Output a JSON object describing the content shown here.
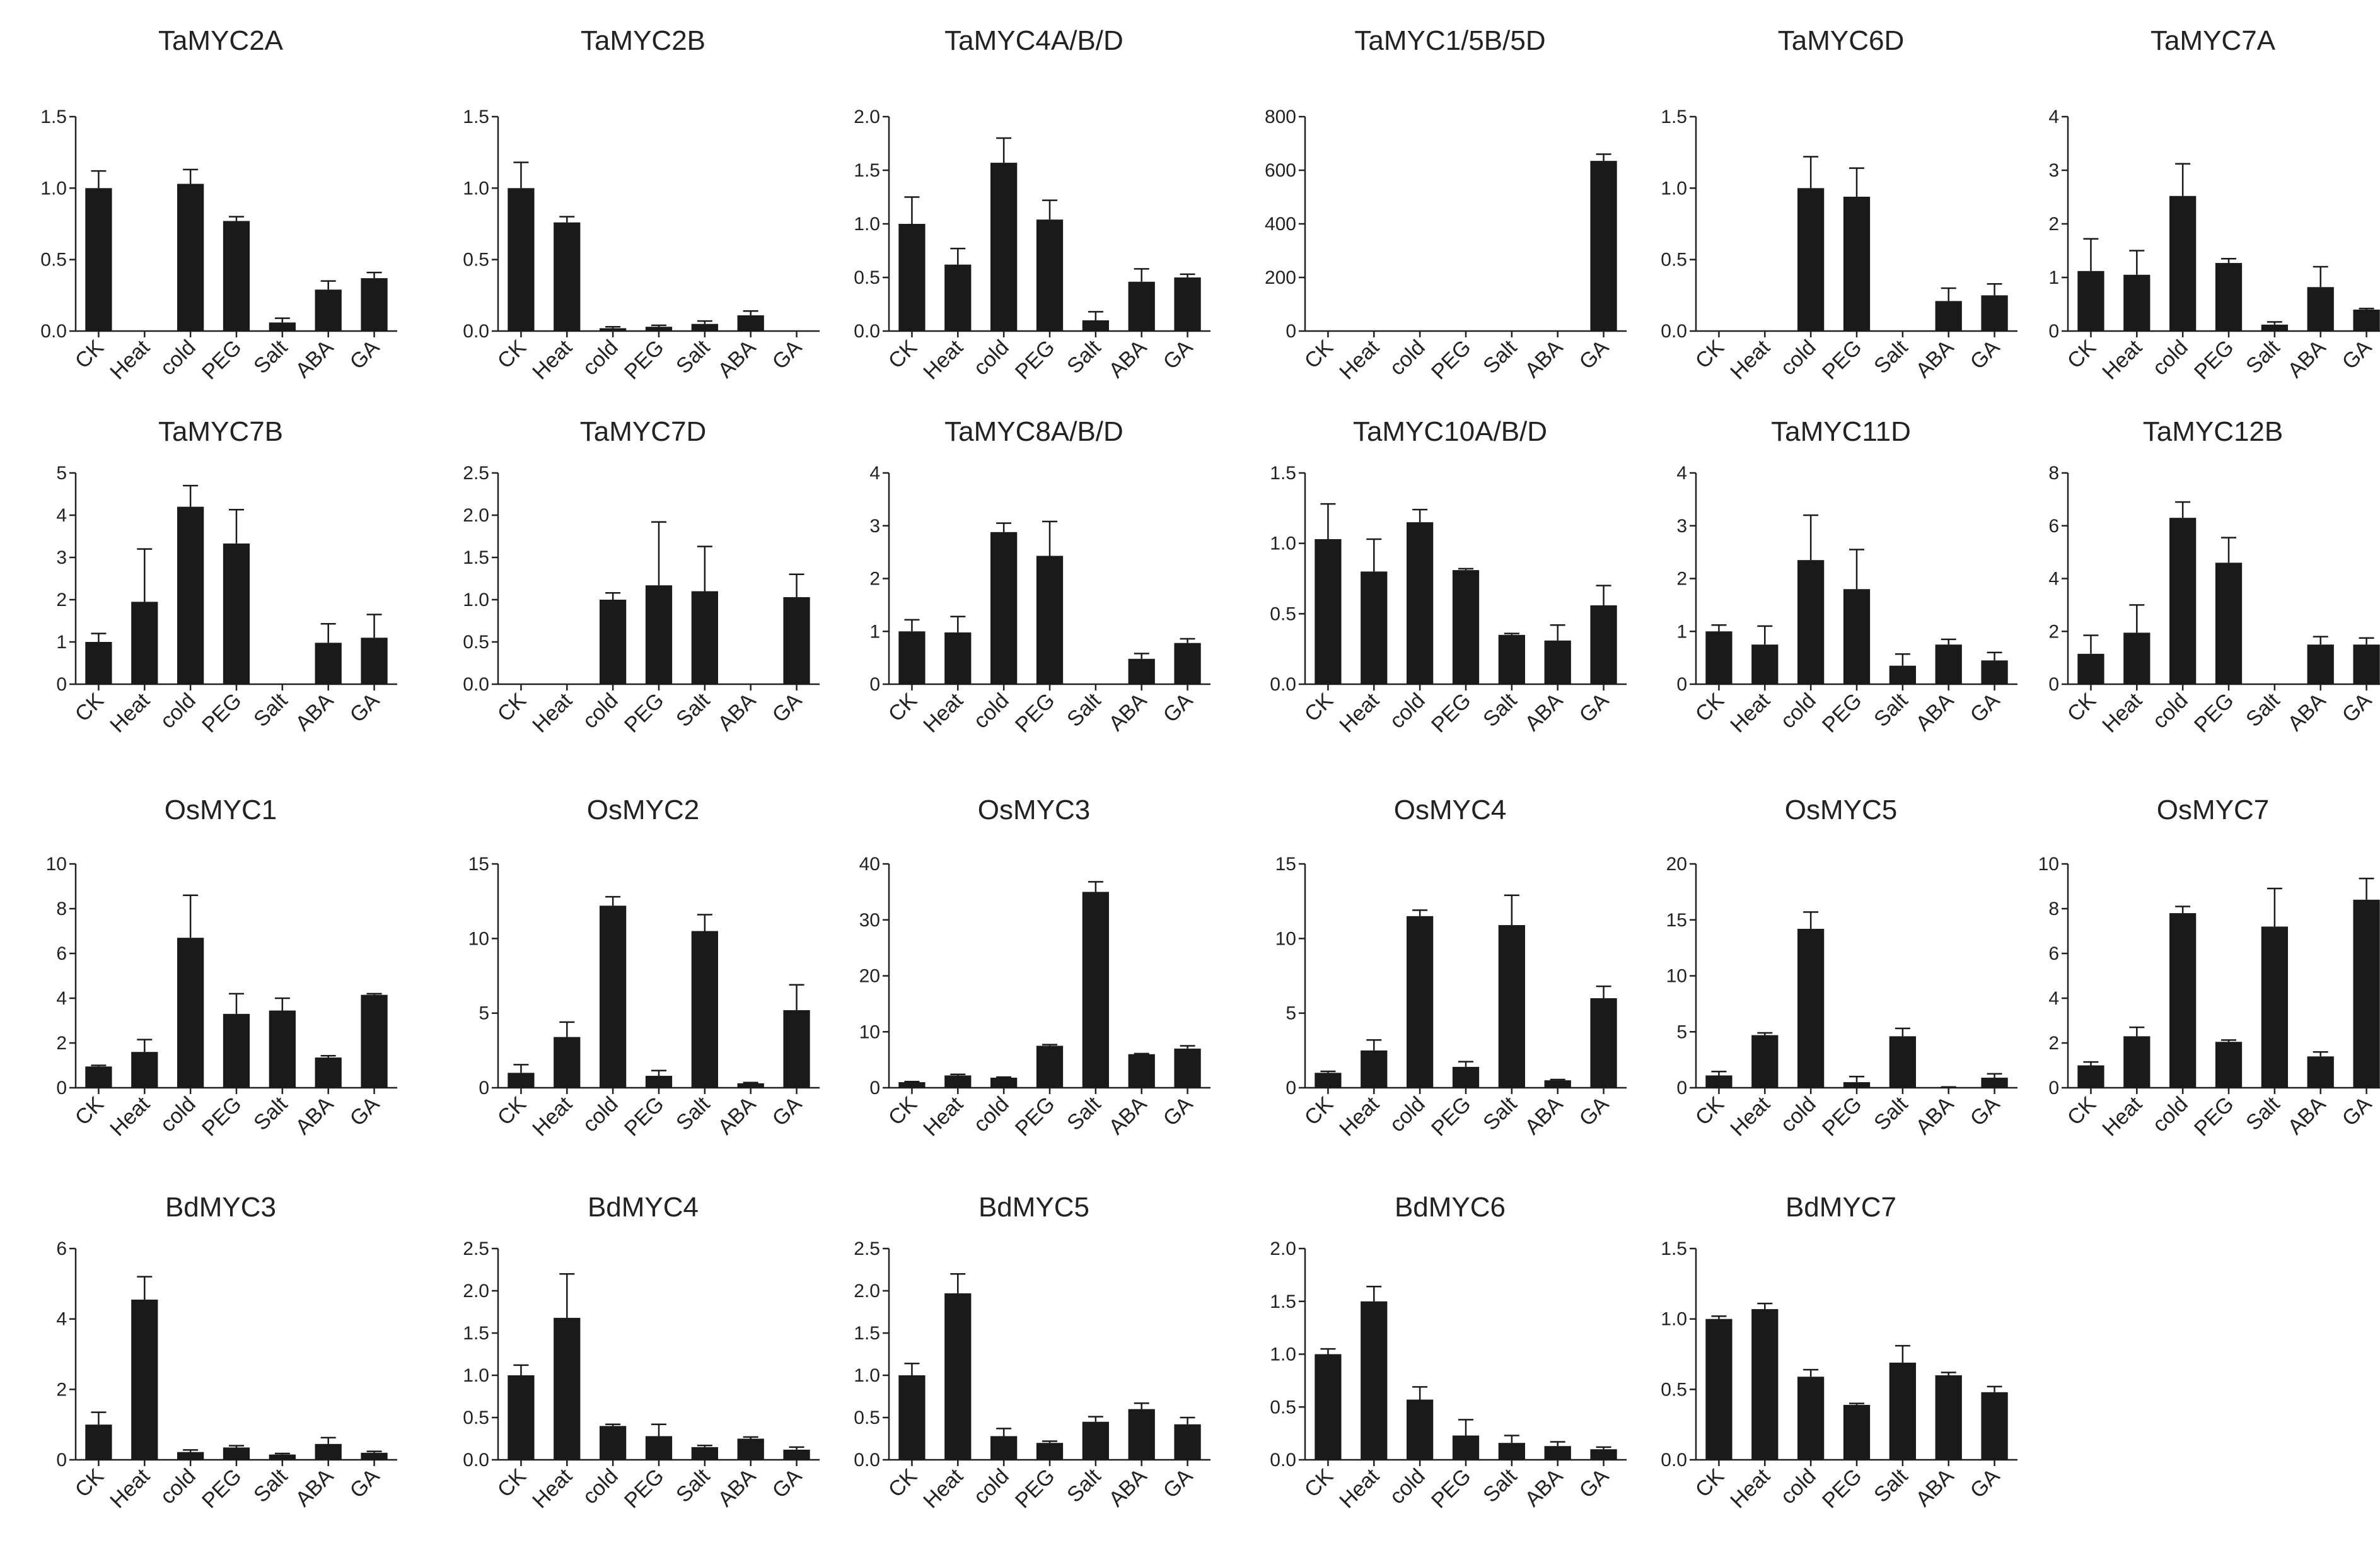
{
  "figure": {
    "bar_color": "#1a1a1a",
    "axis_color": "#222222",
    "background": "#ffffff"
  },
  "chart_data": [
    {
      "type": "bar",
      "title": "TaMYC2A",
      "categories": [
        "CK",
        "Heat",
        "cold",
        "PEG",
        "Salt",
        "ABA",
        "GA"
      ],
      "values": [
        1.0,
        0,
        1.03,
        0.77,
        0.06,
        0.29,
        0.37
      ],
      "errors": [
        0.12,
        0,
        0.1,
        0.03,
        0.03,
        0.06,
        0.04
      ],
      "ylim": [
        0,
        1.5
      ],
      "yticks": [
        "0.0",
        "0.5",
        "1.0",
        "1.5"
      ]
    },
    {
      "type": "bar",
      "title": "TaMYC2B",
      "categories": [
        "CK",
        "Heat",
        "cold",
        "PEG",
        "Salt",
        "ABA",
        "GA"
      ],
      "values": [
        1.0,
        0.76,
        0.02,
        0.03,
        0.05,
        0.11,
        0
      ],
      "errors": [
        0.18,
        0.04,
        0.01,
        0.01,
        0.02,
        0.03,
        0
      ],
      "ylim": [
        0,
        1.5
      ],
      "yticks": [
        "0.0",
        "0.5",
        "1.0",
        "1.5"
      ]
    },
    {
      "type": "bar",
      "title": "TaMYC4A/B/D",
      "categories": [
        "CK",
        "Heat",
        "cold",
        "PEG",
        "Salt",
        "ABA",
        "GA"
      ],
      "values": [
        1.0,
        0.62,
        1.57,
        1.04,
        0.1,
        0.46,
        0.5
      ],
      "errors": [
        0.25,
        0.15,
        0.23,
        0.18,
        0.08,
        0.12,
        0.03
      ],
      "ylim": [
        0,
        2.0
      ],
      "yticks": [
        "0.0",
        "0.5",
        "1.0",
        "1.5",
        "2.0"
      ]
    },
    {
      "type": "bar",
      "title": "TaMYC1/5B/5D",
      "categories": [
        "CK",
        "Heat",
        "cold",
        "PEG",
        "Salt",
        "ABA",
        "GA"
      ],
      "values": [
        1,
        1,
        1,
        1,
        0,
        1,
        635
      ],
      "errors": [
        0,
        0,
        0,
        0,
        0,
        0,
        25
      ],
      "ylim": [
        0,
        800
      ],
      "yticks": [
        "0",
        "200",
        "400",
        "600",
        "800"
      ]
    },
    {
      "type": "bar",
      "title": "TaMYC6D",
      "categories": [
        "CK",
        "Heat",
        "cold",
        "PEG",
        "Salt",
        "ABA",
        "GA"
      ],
      "values": [
        0,
        0,
        1.0,
        0.94,
        0,
        0.21,
        0.25
      ],
      "errors": [
        0,
        0,
        0.22,
        0.2,
        0,
        0.09,
        0.08
      ],
      "ylim": [
        0,
        1.5
      ],
      "yticks": [
        "0.0",
        "0.5",
        "1.0",
        "1.5"
      ]
    },
    {
      "type": "bar",
      "title": "TaMYC7A",
      "categories": [
        "CK",
        "Heat",
        "cold",
        "PEG",
        "Salt",
        "ABA",
        "GA"
      ],
      "values": [
        1.12,
        1.05,
        2.52,
        1.27,
        0.12,
        0.82,
        0.4
      ],
      "errors": [
        0.6,
        0.45,
        0.6,
        0.08,
        0.05,
        0.38,
        0.02
      ],
      "ylim": [
        0,
        4
      ],
      "yticks": [
        "0",
        "1",
        "2",
        "3",
        "4"
      ]
    },
    {
      "type": "bar",
      "title": "TaMYC7B",
      "categories": [
        "CK",
        "Heat",
        "cold",
        "PEG",
        "Salt",
        "ABA",
        "GA"
      ],
      "values": [
        1.0,
        1.95,
        4.2,
        3.33,
        0,
        0.98,
        1.1
      ],
      "errors": [
        0.2,
        1.25,
        0.5,
        0.8,
        0,
        0.45,
        0.55
      ],
      "ylim": [
        0,
        5
      ],
      "yticks": [
        "0",
        "1",
        "2",
        "3",
        "4",
        "5"
      ]
    },
    {
      "type": "bar",
      "title": "TaMYC7D",
      "categories": [
        "CK",
        "Heat",
        "cold",
        "PEG",
        "Salt",
        "ABA",
        "GA"
      ],
      "values": [
        0,
        0,
        1.0,
        1.17,
        1.1,
        0,
        1.03
      ],
      "errors": [
        0,
        0,
        0.08,
        0.75,
        0.53,
        0,
        0.27
      ],
      "ylim": [
        0,
        2.5
      ],
      "yticks": [
        "0.0",
        "0.5",
        "1.0",
        "1.5",
        "2.0",
        "2.5"
      ]
    },
    {
      "type": "bar",
      "title": "TaMYC8A/B/D",
      "categories": [
        "CK",
        "Heat",
        "cold",
        "PEG",
        "Salt",
        "ABA",
        "GA"
      ],
      "values": [
        1.0,
        0.98,
        2.88,
        2.43,
        0,
        0.48,
        0.78
      ],
      "errors": [
        0.22,
        0.3,
        0.17,
        0.65,
        0,
        0.1,
        0.08
      ],
      "ylim": [
        0,
        4
      ],
      "yticks": [
        "0",
        "1",
        "2",
        "3",
        "4"
      ]
    },
    {
      "type": "bar",
      "title": "TaMYC10A/B/D",
      "categories": [
        "CK",
        "Heat",
        "cold",
        "PEG",
        "Salt",
        "ABA",
        "GA"
      ],
      "values": [
        1.03,
        0.8,
        1.15,
        0.81,
        0.35,
        0.31,
        0.56
      ],
      "errors": [
        0.25,
        0.23,
        0.09,
        0.01,
        0.01,
        0.11,
        0.14
      ],
      "ylim": [
        0,
        1.5
      ],
      "yticks": [
        "0.0",
        "0.5",
        "1.0",
        "1.5"
      ]
    },
    {
      "type": "bar",
      "title": "TaMYC11D",
      "categories": [
        "CK",
        "Heat",
        "cold",
        "PEG",
        "Salt",
        "ABA",
        "GA"
      ],
      "values": [
        1.0,
        0.75,
        2.35,
        1.8,
        0.35,
        0.75,
        0.45
      ],
      "errors": [
        0.12,
        0.35,
        0.85,
        0.75,
        0.22,
        0.1,
        0.15
      ],
      "ylim": [
        0,
        4
      ],
      "yticks": [
        "0",
        "1",
        "2",
        "3",
        "4"
      ]
    },
    {
      "type": "bar",
      "title": "TaMYC12B",
      "categories": [
        "CK",
        "Heat",
        "cold",
        "PEG",
        "Salt",
        "ABA",
        "GA"
      ],
      "values": [
        1.15,
        1.95,
        6.3,
        4.6,
        0,
        1.5,
        1.5
      ],
      "errors": [
        0.7,
        1.05,
        0.6,
        0.95,
        0,
        0.3,
        0.25
      ],
      "ylim": [
        0,
        8
      ],
      "yticks": [
        "0",
        "2",
        "4",
        "6",
        "8"
      ]
    },
    {
      "type": "bar",
      "title": "OsMYC1",
      "categories": [
        "CK",
        "Heat",
        "cold",
        "PEG",
        "Salt",
        "ABA",
        "GA"
      ],
      "values": [
        0.95,
        1.6,
        6.7,
        3.3,
        3.45,
        1.35,
        4.15
      ],
      "errors": [
        0.05,
        0.55,
        1.9,
        0.9,
        0.55,
        0.08,
        0.05
      ],
      "ylim": [
        0,
        10
      ],
      "yticks": [
        "0",
        "2",
        "4",
        "6",
        "8",
        "10"
      ]
    },
    {
      "type": "bar",
      "title": "OsMYC2",
      "categories": [
        "CK",
        "Heat",
        "cold",
        "PEG",
        "Salt",
        "ABA",
        "GA"
      ],
      "values": [
        1.0,
        3.4,
        12.2,
        0.8,
        10.5,
        0.3,
        5.2
      ],
      "errors": [
        0.55,
        1.0,
        0.6,
        0.35,
        1.1,
        0.05,
        1.7
      ],
      "ylim": [
        0,
        15
      ],
      "yticks": [
        "0",
        "5",
        "10",
        "15"
      ]
    },
    {
      "type": "bar",
      "title": "OsMYC3",
      "categories": [
        "CK",
        "Heat",
        "cold",
        "PEG",
        "Salt",
        "ABA",
        "GA"
      ],
      "values": [
        1.0,
        2.2,
        1.8,
        7.5,
        35,
        6.0,
        7.0
      ],
      "errors": [
        0.1,
        0.2,
        0.1,
        0.2,
        1.8,
        0.1,
        0.5
      ],
      "ylim": [
        0,
        40
      ],
      "yticks": [
        "0",
        "10",
        "20",
        "30",
        "40"
      ]
    },
    {
      "type": "bar",
      "title": "OsMYC4",
      "categories": [
        "CK",
        "Heat",
        "cold",
        "PEG",
        "Salt",
        "ABA",
        "GA"
      ],
      "values": [
        1.0,
        2.5,
        11.5,
        1.4,
        10.9,
        0.5,
        6.0
      ],
      "errors": [
        0.1,
        0.7,
        0.4,
        0.35,
        2.0,
        0.05,
        0.8
      ],
      "ylim": [
        0,
        15
      ],
      "yticks": [
        "0",
        "5",
        "10",
        "15"
      ]
    },
    {
      "type": "bar",
      "title": "OsMYC5",
      "categories": [
        "CK",
        "Heat",
        "cold",
        "PEG",
        "Salt",
        "ABA",
        "GA"
      ],
      "values": [
        1.1,
        4.7,
        14.2,
        0.5,
        4.6,
        0.05,
        0.9
      ],
      "errors": [
        0.35,
        0.2,
        1.5,
        0.5,
        0.7,
        0.02,
        0.35
      ],
      "ylim": [
        0,
        20
      ],
      "yticks": [
        "0",
        "5",
        "10",
        "15",
        "20"
      ]
    },
    {
      "type": "bar",
      "title": "OsMYC7",
      "categories": [
        "CK",
        "Heat",
        "cold",
        "PEG",
        "Salt",
        "ABA",
        "GA"
      ],
      "values": [
        1.0,
        2.3,
        7.8,
        2.05,
        7.2,
        1.4,
        8.4
      ],
      "errors": [
        0.15,
        0.4,
        0.3,
        0.08,
        1.7,
        0.2,
        0.95
      ],
      "ylim": [
        0,
        10
      ],
      "yticks": [
        "0",
        "2",
        "4",
        "6",
        "8",
        "10"
      ]
    },
    {
      "type": "bar",
      "title": "BdMYC3",
      "categories": [
        "CK",
        "Heat",
        "cold",
        "PEG",
        "Salt",
        "ABA",
        "GA"
      ],
      "values": [
        1.0,
        4.55,
        0.22,
        0.35,
        0.15,
        0.45,
        0.2
      ],
      "errors": [
        0.35,
        0.65,
        0.06,
        0.05,
        0.03,
        0.18,
        0.04
      ],
      "ylim": [
        0,
        6
      ],
      "yticks": [
        "0",
        "2",
        "4",
        "6"
      ]
    },
    {
      "type": "bar",
      "title": "BdMYC4",
      "categories": [
        "CK",
        "Heat",
        "cold",
        "PEG",
        "Salt",
        "ABA",
        "GA"
      ],
      "values": [
        1.0,
        1.68,
        0.4,
        0.28,
        0.15,
        0.25,
        0.12
      ],
      "errors": [
        0.12,
        0.52,
        0.02,
        0.14,
        0.02,
        0.02,
        0.03
      ],
      "ylim": [
        0,
        2.5
      ],
      "yticks": [
        "0.0",
        "0.5",
        "1.0",
        "1.5",
        "2.0",
        "2.5"
      ]
    },
    {
      "type": "bar",
      "title": "BdMYC5",
      "categories": [
        "CK",
        "Heat",
        "cold",
        "PEG",
        "Salt",
        "ABA",
        "GA"
      ],
      "values": [
        1.0,
        1.97,
        0.28,
        0.2,
        0.45,
        0.6,
        0.42
      ],
      "errors": [
        0.14,
        0.23,
        0.09,
        0.02,
        0.06,
        0.07,
        0.08
      ],
      "ylim": [
        0,
        2.5
      ],
      "yticks": [
        "0.0",
        "0.5",
        "1.0",
        "1.5",
        "2.0",
        "2.5"
      ]
    },
    {
      "type": "bar",
      "title": "BdMYC6",
      "categories": [
        "CK",
        "Heat",
        "cold",
        "PEG",
        "Salt",
        "ABA",
        "GA"
      ],
      "values": [
        1.0,
        1.5,
        0.57,
        0.23,
        0.16,
        0.13,
        0.1
      ],
      "errors": [
        0.05,
        0.14,
        0.12,
        0.15,
        0.07,
        0.04,
        0.02
      ],
      "ylim": [
        0,
        2.0
      ],
      "yticks": [
        "0.0",
        "0.5",
        "1.0",
        "1.5",
        "2.0"
      ]
    },
    {
      "type": "bar",
      "title": "BdMYC7",
      "categories": [
        "CK",
        "Heat",
        "cold",
        "PEG",
        "Salt",
        "ABA",
        "GA"
      ],
      "values": [
        1.0,
        1.07,
        0.59,
        0.39,
        0.69,
        0.6,
        0.48
      ],
      "errors": [
        0.02,
        0.04,
        0.05,
        0.01,
        0.12,
        0.02,
        0.04
      ],
      "ylim": [
        0,
        1.5
      ],
      "yticks": [
        "0.0",
        "0.5",
        "1.0",
        "1.5"
      ]
    }
  ]
}
